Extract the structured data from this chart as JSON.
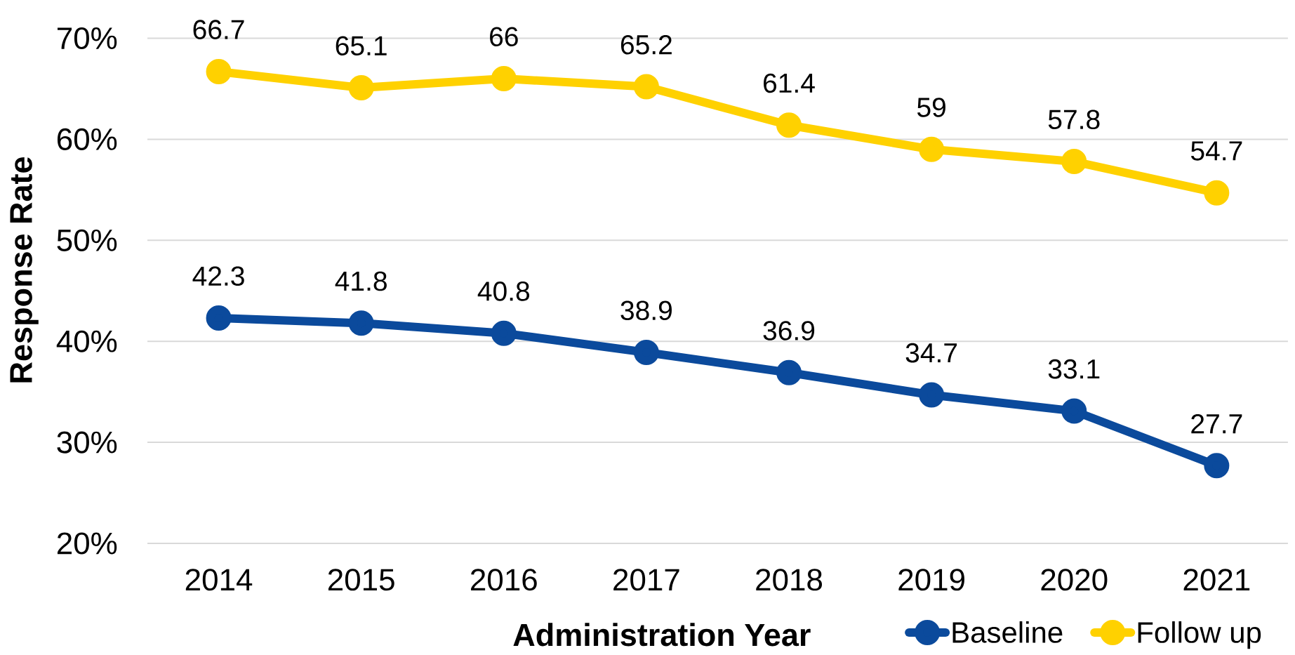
{
  "chart_data": {
    "type": "line",
    "xlabel": "Administration Year",
    "ylabel": "Response Rate",
    "categories": [
      "2014",
      "2015",
      "2016",
      "2017",
      "2018",
      "2019",
      "2020",
      "2021"
    ],
    "series": [
      {
        "name": "Baseline",
        "color": "#0b4a9c",
        "values": [
          42.3,
          41.8,
          40.8,
          38.9,
          36.9,
          34.7,
          33.1,
          27.7
        ]
      },
      {
        "name": "Follow up",
        "color": "#ffd100",
        "values": [
          66.7,
          65.1,
          66,
          65.2,
          61.4,
          59,
          57.8,
          54.7
        ]
      }
    ],
    "ylim": [
      20,
      70
    ],
    "yticks": [
      {
        "value": 20,
        "label": "20%"
      },
      {
        "value": 30,
        "label": "30%"
      },
      {
        "value": 40,
        "label": "40%"
      },
      {
        "value": 50,
        "label": "50%"
      },
      {
        "value": 60,
        "label": "60%"
      },
      {
        "value": 70,
        "label": "70%"
      }
    ],
    "grid": "y",
    "legend": "bottom right",
    "marker": "circle",
    "line_style": "solid",
    "data_labels": true
  }
}
